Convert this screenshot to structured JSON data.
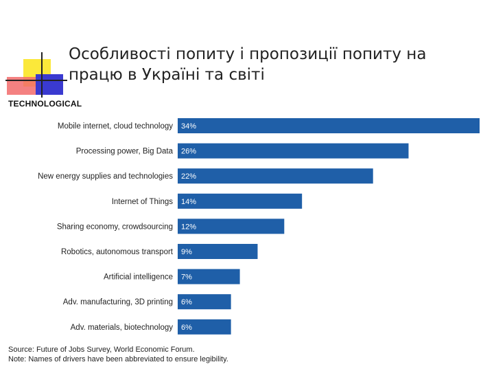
{
  "title": "Особливості попиту і пропозиції попиту на працю в Україні та світі",
  "chart_data": {
    "type": "bar",
    "orientation": "horizontal",
    "title": "TECHNOLOGICAL",
    "categories": [
      "Mobile internet, cloud technology",
      "Processing power, Big Data",
      "New energy supplies and technologies",
      "Internet of Things",
      "Sharing economy, crowdsourcing",
      "Robotics, autonomous transport",
      "Artificial intelligence",
      "Adv. manufacturing, 3D printing",
      "Adv. materials, biotechnology"
    ],
    "values": [
      34,
      26,
      22,
      14,
      12,
      9,
      7,
      6,
      6
    ],
    "value_labels": [
      "34%",
      "26%",
      "22%",
      "14%",
      "12%",
      "9%",
      "7%",
      "6%",
      "6%"
    ],
    "xlim": [
      0,
      34
    ],
    "bar_color": "#1f5fa8"
  },
  "source": "Source: Future of Jobs Survey, World Economic Forum.",
  "note": "Note: Names of drivers have been abbreviated to ensure legibility."
}
